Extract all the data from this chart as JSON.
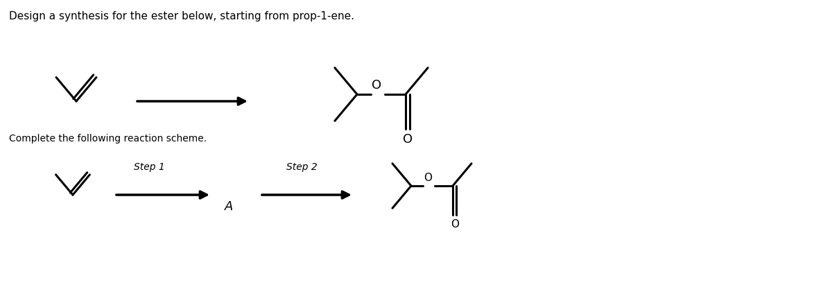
{
  "title_text": "Design a synthesis for the ester below, starting from prop-1-ene.",
  "subtitle_text": "Complete the following reaction scheme.",
  "title_fontsize": 11,
  "subtitle_fontsize": 10,
  "background_color": "#ffffff",
  "text_color": "#000000",
  "step1_label": "Step 1",
  "step2_label": "Step 2",
  "intermediate_label": "A",
  "figsize": [
    12.0,
    4.11
  ],
  "dpi": 100
}
